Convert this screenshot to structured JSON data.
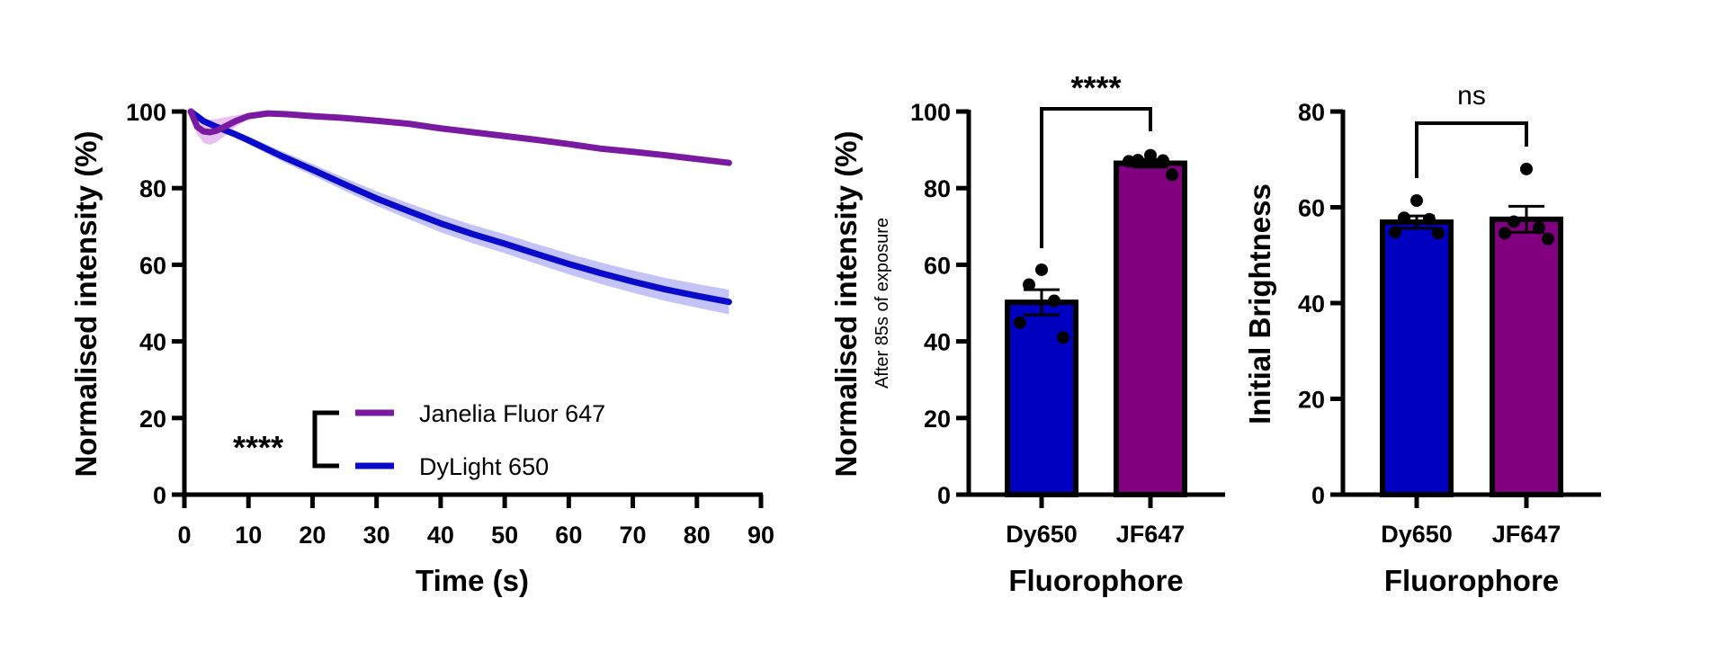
{
  "chart_data": [
    {
      "type": "line",
      "xlabel": "Time (s)",
      "ylabel": "Normalised intensity (%)",
      "xlim": [
        0,
        90
      ],
      "ylim": [
        0,
        100
      ],
      "xticks": [
        "0",
        "10",
        "20",
        "30",
        "40",
        "50",
        "60",
        "70",
        "80",
        "90"
      ],
      "yticks": [
        "0",
        "20",
        "40",
        "60",
        "80",
        "100"
      ],
      "grid": false,
      "legend_position": "bottom-left",
      "significance": "****",
      "series": [
        {
          "name": "Janelia Fluor 647",
          "color": "#7a1aa0",
          "band_color": "#e4b6f0",
          "x": [
            1,
            2,
            3,
            4,
            5,
            6,
            8,
            10,
            13,
            16,
            20,
            25,
            30,
            35,
            40,
            45,
            50,
            55,
            60,
            65,
            70,
            75,
            80,
            85
          ],
          "y": [
            100,
            96,
            94.8,
            94.6,
            95,
            95.8,
            97.5,
            98.8,
            99.5,
            99.3,
            98.8,
            98.3,
            97.6,
            96.8,
            95.6,
            94.6,
            93.6,
            92.6,
            91.5,
            90.3,
            89.5,
            88.6,
            87.6,
            86.6
          ],
          "err": [
            0,
            2,
            3,
            3.3,
            3,
            2.6,
            1.5,
            0.8,
            0.5,
            0.4,
            0.4,
            0.4,
            0.4,
            0.4,
            0.4,
            0.4,
            0.4,
            0.4,
            0.4,
            0.4,
            0.4,
            0.4,
            0.4,
            0.4
          ]
        },
        {
          "name": "DyLight 650",
          "color": "#0a0acb",
          "band_color": "#b9b9f7",
          "x": [
            1,
            3,
            5,
            8,
            10,
            15,
            20,
            25,
            30,
            35,
            40,
            45,
            50,
            55,
            60,
            65,
            70,
            75,
            80,
            85
          ],
          "y": [
            100,
            97.5,
            96,
            94,
            92.5,
            88.5,
            84.8,
            81,
            77.3,
            74,
            70.8,
            68,
            65.5,
            62.8,
            60.2,
            57.8,
            55.6,
            53.6,
            51.9,
            50.3
          ],
          "err": [
            0,
            0.5,
            0.7,
            0.9,
            1,
            1.3,
            1.5,
            1.7,
            1.9,
            2.1,
            2.3,
            2.4,
            2.5,
            2.6,
            2.7,
            2.8,
            2.9,
            3,
            3.1,
            3.2
          ]
        }
      ]
    },
    {
      "type": "bar",
      "xlabel": "Fluorophore",
      "ylabel": "Normalised intensity (%)",
      "ylabel_sub": "After 85s of exposure",
      "ylim": [
        0,
        100
      ],
      "yticks": [
        "0",
        "20",
        "40",
        "60",
        "80",
        "100"
      ],
      "categories": [
        "Dy650",
        "JF647"
      ],
      "colors": [
        "#0000c0",
        "#800080"
      ],
      "values": [
        50.2,
        86.5
      ],
      "sem": [
        3.3,
        1.0
      ],
      "points": [
        [
          58.7,
          54.8,
          50.6,
          44.9,
          41.0
        ],
        [
          88.6,
          87.3,
          87.2,
          87.0,
          83.5
        ]
      ],
      "significance": "****"
    },
    {
      "type": "bar",
      "xlabel": "Fluorophore",
      "ylabel": "Initial Brightness",
      "ylim": [
        0,
        80
      ],
      "yticks": [
        "0",
        "20",
        "40",
        "60",
        "80"
      ],
      "categories": [
        "Dy650",
        "JF647"
      ],
      "colors": [
        "#0000c0",
        "#800080"
      ],
      "values": [
        56.9,
        57.5
      ],
      "sem": [
        1.3,
        2.7
      ],
      "points": [
        [
          61.4,
          57.8,
          57.5,
          54.8,
          54.6
        ],
        [
          68.0,
          57.0,
          55.7,
          54.6,
          53.4
        ]
      ],
      "significance": "ns"
    }
  ]
}
